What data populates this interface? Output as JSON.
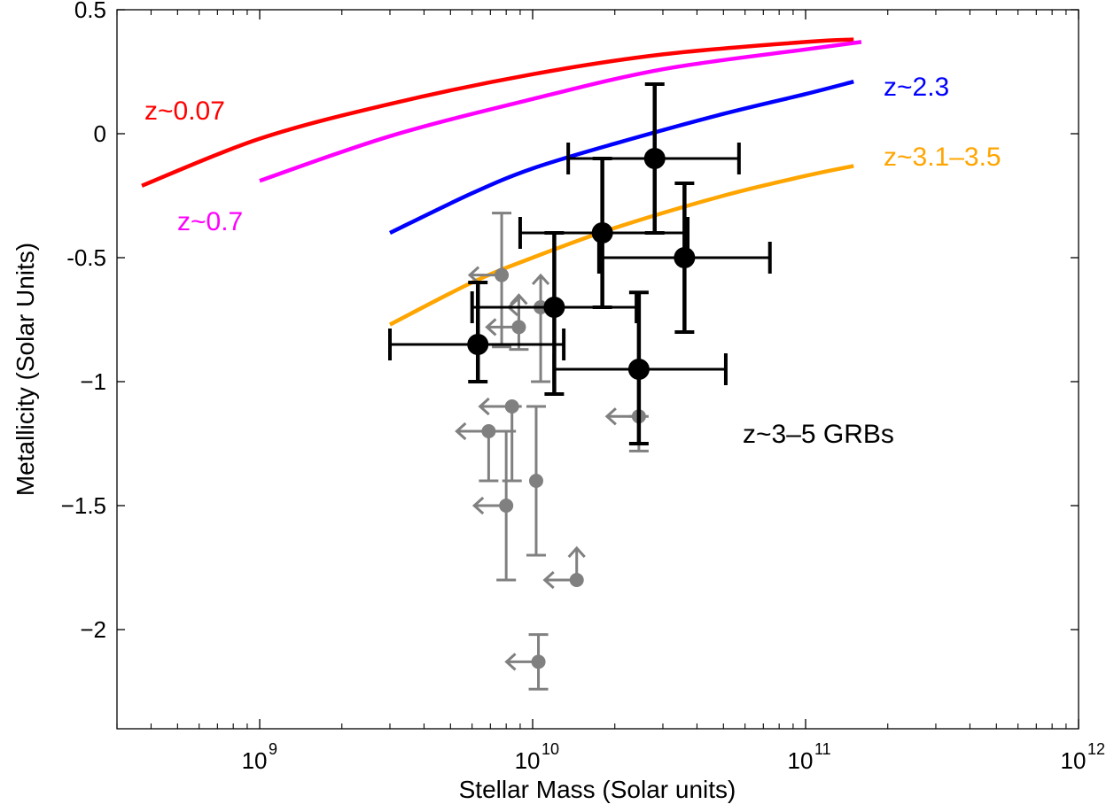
{
  "chart_data": {
    "type": "scatter",
    "xlabel": "Stellar Mass (Solar units)",
    "ylabel": "Metallicity (Solar Units)",
    "x_scale": "log",
    "xlim": [
      300000000,
      1000000000000
    ],
    "ylim": [
      -2.4,
      0.5
    ],
    "grid": false,
    "x_ticks": [
      {
        "value": 1000000000,
        "label": "10",
        "exp": "9"
      },
      {
        "value": 10000000000,
        "label": "10",
        "exp": "10"
      },
      {
        "value": 100000000000,
        "label": "10",
        "exp": "11"
      },
      {
        "value": 1000000000000,
        "label": "10",
        "exp": "12"
      }
    ],
    "y_ticks": [
      {
        "value": 0.5,
        "label": "0.5"
      },
      {
        "value": 0,
        "label": "0"
      },
      {
        "value": -0.5,
        "label": "-0.5"
      },
      {
        "value": -1,
        "label": "−1"
      },
      {
        "value": -1.5,
        "label": "−1.5"
      },
      {
        "value": -2,
        "label": "−2"
      }
    ],
    "relations": [
      {
        "label": "z~0.07",
        "color": "#ff0000",
        "points": [
          [
            370000000,
            -0.21
          ],
          [
            1000000000,
            -0.02
          ],
          [
            3000000000,
            0.12
          ],
          [
            10000000000,
            0.24
          ],
          [
            30000000000,
            0.32
          ],
          [
            100000000000,
            0.37
          ],
          [
            150000000000,
            0.38
          ]
        ]
      },
      {
        "label": "z~0.7",
        "color": "#ff00ff",
        "points": [
          [
            1000000000,
            -0.19
          ],
          [
            3000000000,
            -0.01
          ],
          [
            10000000000,
            0.14
          ],
          [
            30000000000,
            0.26
          ],
          [
            100000000000,
            0.34
          ],
          [
            160000000000,
            0.37
          ]
        ]
      },
      {
        "label": "z~2.3",
        "color": "#0000ff",
        "points": [
          [
            3000000000,
            -0.4
          ],
          [
            6000000000,
            -0.24
          ],
          [
            10000000000,
            -0.14
          ],
          [
            20000000000,
            -0.04
          ],
          [
            50000000000,
            0.08
          ],
          [
            100000000000,
            0.16
          ],
          [
            150000000000,
            0.21
          ]
        ]
      },
      {
        "label": "z~3.1–3.5",
        "color": "#ffa500",
        "points": [
          [
            3000000000,
            -0.77
          ],
          [
            6000000000,
            -0.6
          ],
          [
            10000000000,
            -0.5
          ],
          [
            20000000000,
            -0.38
          ],
          [
            50000000000,
            -0.25
          ],
          [
            100000000000,
            -0.17
          ],
          [
            150000000000,
            -0.13
          ]
        ]
      }
    ],
    "grb_label": "z~3–5 GRBs",
    "grb_color": "#000000",
    "grb_points": [
      {
        "x": 28000000000,
        "y": -0.1,
        "x_lo": 13500000000,
        "x_hi": 57000000000,
        "y_lo": -0.4,
        "y_hi": 0.2
      },
      {
        "x": 18000000000,
        "y": -0.4,
        "x_lo": 9000000000,
        "x_hi": 37000000000,
        "y_lo": -0.7,
        "y_hi": -0.1
      },
      {
        "x": 36000000000,
        "y": -0.5,
        "x_lo": 17500000000,
        "x_hi": 74000000000,
        "y_lo": -0.8,
        "y_hi": -0.2
      },
      {
        "x": 12000000000,
        "y": -0.7,
        "x_lo": 6000000000,
        "x_hi": 24000000000,
        "y_lo": -1.05,
        "y_hi": -0.4
      },
      {
        "x": 6300000000,
        "y": -0.85,
        "x_lo": 3000000000,
        "x_hi": 13000000000,
        "y_lo": -1.0,
        "y_hi": -0.6
      },
      {
        "x": 24500000000,
        "y": -0.95,
        "x_lo": 12000000000,
        "x_hi": 51000000000,
        "y_lo": -1.25,
        "y_hi": -0.64
      }
    ],
    "comparison_color": "#808080",
    "comparison_points": [
      {
        "x": 7700000000,
        "y": -0.57,
        "y_lo": -0.86,
        "y_hi": -0.32,
        "x_upper_limit": true
      },
      {
        "x": 10700000000,
        "y": -0.7,
        "y_lo": -1.0,
        "y_hi": -0.7,
        "x_upper_limit": true,
        "y_lower_limit": true
      },
      {
        "x": 8900000000,
        "y": -0.78,
        "y_lo": -0.87,
        "y_hi": -0.7,
        "x_upper_limit": true,
        "y_lower_limit": true
      },
      {
        "x": 8400000000,
        "y": -1.1,
        "y_lo": -1.4,
        "y_hi": -1.1,
        "x_upper_limit": true
      },
      {
        "x": 6900000000,
        "y": -1.2,
        "y_lo": -1.4,
        "y_hi": -1.2,
        "x_upper_limit": true
      },
      {
        "x": 10300000000,
        "y": -1.4,
        "y_lo": -1.7,
        "y_hi": -1.1
      },
      {
        "x": 8000000000,
        "y": -1.5,
        "y_lo": -1.8,
        "y_hi": -1.2,
        "x_upper_limit": true
      },
      {
        "x": 24500000000,
        "y": -1.14,
        "y_lo": -1.28,
        "y_hi": -1.14,
        "x_upper_limit": true
      },
      {
        "x": 14500000000,
        "y": -1.8,
        "y_lo": -1.8,
        "y_hi": -1.8,
        "x_upper_limit": true,
        "y_lower_limit": true
      },
      {
        "x": 10500000000,
        "y": -2.13,
        "y_lo": -2.24,
        "y_hi": -2.02,
        "x_upper_limit": true
      }
    ]
  }
}
